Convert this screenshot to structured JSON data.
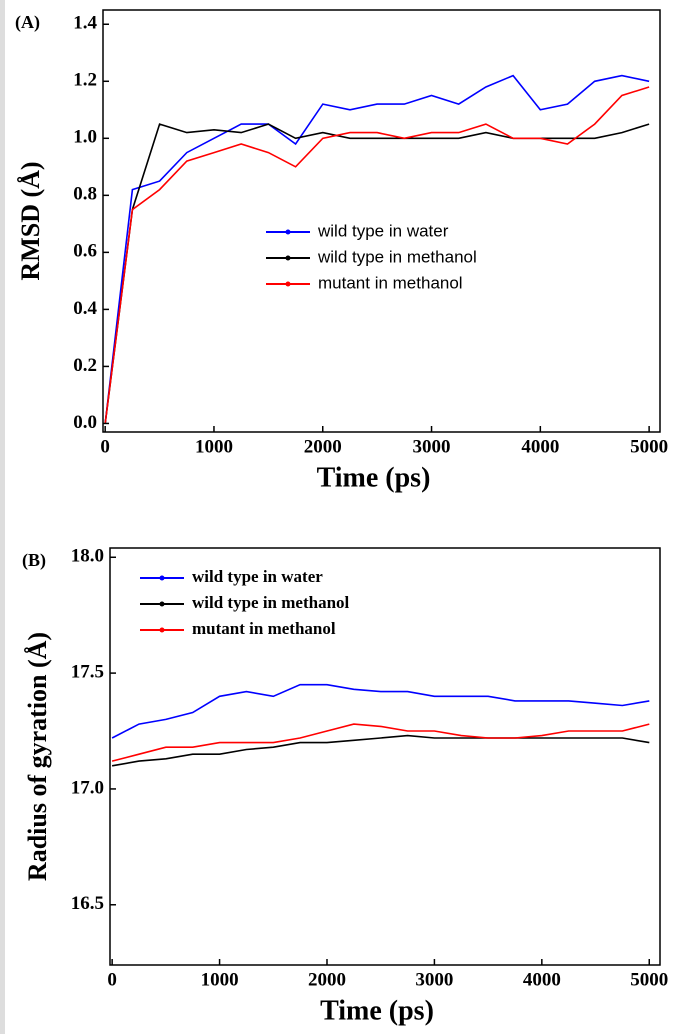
{
  "chart_data": [
    {
      "type": "line",
      "panel_label": "(A)",
      "x_label": "Time (ps)",
      "y_label": "RMSD (Å)",
      "xlim": [
        -20,
        5100
      ],
      "ylim": [
        -0.03,
        1.45
      ],
      "xticks": [
        0,
        1000,
        2000,
        3000,
        4000,
        5000
      ],
      "yticks": [
        {
          "value": 0,
          "label": "0.0"
        },
        {
          "value": 0.2,
          "label": "0.2"
        },
        {
          "value": 0.4,
          "label": "0.4"
        },
        {
          "value": 0.6,
          "label": "0.6"
        },
        {
          "value": 0.8,
          "label": "0.8"
        },
        {
          "value": 1,
          "label": "1.0"
        },
        {
          "value": 1.2,
          "label": "1.2"
        },
        {
          "value": 1.4,
          "label": "1.4"
        }
      ],
      "legend": "center",
      "x": [
        0,
        250,
        500,
        750,
        1000,
        1250,
        1500,
        1750,
        2000,
        2250,
        2500,
        2750,
        3000,
        3250,
        3500,
        3750,
        4000,
        4250,
        4500,
        4750,
        5000
      ],
      "series": [
        {
          "name": "wild type in water",
          "color": "#0000ff",
          "values": [
            0,
            0.82,
            0.85,
            0.95,
            1.0,
            1.05,
            1.05,
            0.98,
            1.12,
            1.1,
            1.12,
            1.12,
            1.15,
            1.12,
            1.18,
            1.22,
            1.1,
            1.12,
            1.2,
            1.22,
            1.2
          ]
        },
        {
          "name": "wild type in methanol",
          "color": "#000000",
          "values": [
            0,
            0.75,
            1.05,
            1.02,
            1.03,
            1.02,
            1.05,
            1.0,
            1.02,
            1.0,
            1.0,
            1.0,
            1.0,
            1.0,
            1.02,
            1.0,
            1.0,
            1.0,
            1.0,
            1.02,
            1.05
          ]
        },
        {
          "name": "mutant in methanol",
          "color": "#ff0000",
          "values": [
            0,
            0.75,
            0.82,
            0.92,
            0.95,
            0.98,
            0.95,
            0.9,
            1.0,
            1.02,
            1.02,
            1.0,
            1.02,
            1.02,
            1.05,
            1.0,
            1.0,
            0.98,
            1.05,
            1.15,
            1.18
          ]
        }
      ]
    },
    {
      "type": "line",
      "panel_label": "(B)",
      "x_label": "Time (ps)",
      "y_label": "Radius of gyration (Å)",
      "xlim": [
        -20,
        5100
      ],
      "ylim": [
        16.24,
        18.04
      ],
      "xticks": [
        0,
        1000,
        2000,
        3000,
        4000,
        5000
      ],
      "yticks": [
        16.5,
        {
          "value": 17,
          "label": "17.0"
        },
        17.5,
        {
          "value": 18,
          "label": "18.0"
        }
      ],
      "legend": "upper left",
      "x": [
        0,
        250,
        500,
        750,
        1000,
        1250,
        1500,
        1750,
        2000,
        2250,
        2500,
        2750,
        3000,
        3250,
        3500,
        3750,
        4000,
        4250,
        4500,
        4750,
        5000
      ],
      "series": [
        {
          "name": "wild type in water",
          "color": "#0000ff",
          "values": [
            17.22,
            17.28,
            17.3,
            17.33,
            17.4,
            17.42,
            17.4,
            17.45,
            17.45,
            17.43,
            17.42,
            17.42,
            17.4,
            17.4,
            17.4,
            17.38,
            17.38,
            17.38,
            17.37,
            17.36,
            17.38
          ]
        },
        {
          "name": "wild type in methanol",
          "color": "#000000",
          "values": [
            17.1,
            17.12,
            17.13,
            17.15,
            17.15,
            17.17,
            17.18,
            17.2,
            17.2,
            17.21,
            17.22,
            17.23,
            17.22,
            17.22,
            17.22,
            17.22,
            17.22,
            17.22,
            17.22,
            17.22,
            17.2
          ]
        },
        {
          "name": "mutant in methanol",
          "color": "#ff0000",
          "values": [
            17.12,
            17.15,
            17.18,
            17.18,
            17.2,
            17.2,
            17.2,
            17.22,
            17.25,
            17.28,
            17.27,
            17.25,
            17.25,
            17.23,
            17.22,
            17.22,
            17.23,
            17.25,
            17.25,
            17.25,
            17.28
          ]
        }
      ]
    }
  ]
}
